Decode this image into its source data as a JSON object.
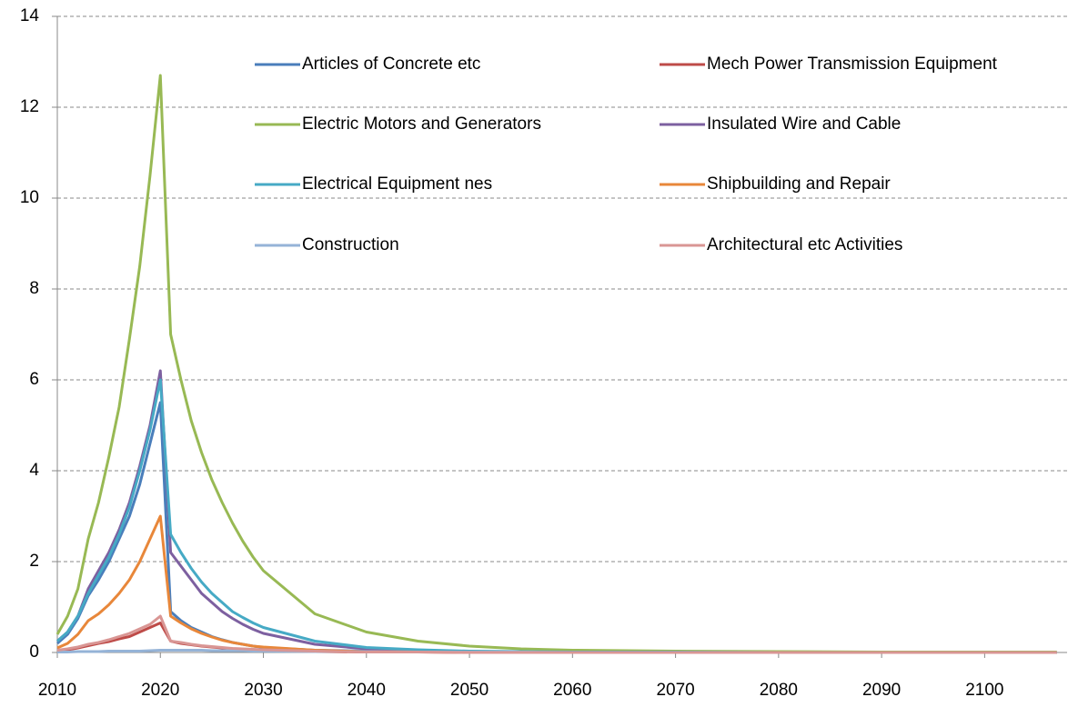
{
  "chart_data": {
    "type": "line",
    "x": [
      2010,
      2011,
      2012,
      2013,
      2014,
      2015,
      2016,
      2017,
      2018,
      2019,
      2020,
      2021,
      2022,
      2023,
      2024,
      2025,
      2026,
      2027,
      2028,
      2029,
      2030,
      2035,
      2040,
      2045,
      2050,
      2055,
      2060,
      2070,
      2080,
      2090,
      2100,
      2107
    ],
    "series": [
      {
        "name": "Articles of Concrete etc",
        "color": "#4a7ebb",
        "values": [
          0.2,
          0.4,
          0.75,
          1.25,
          1.6,
          2.0,
          2.5,
          3.0,
          3.7,
          4.6,
          5.5,
          0.9,
          0.7,
          0.55,
          0.45,
          0.35,
          0.28,
          0.22,
          0.18,
          0.14,
          0.11,
          0.05,
          0.03,
          0.02,
          0.01,
          0.01,
          0,
          0,
          0,
          0,
          0,
          0
        ]
      },
      {
        "name": "Mech Power Transmission Equipment",
        "color": "#be4b48",
        "values": [
          0.03,
          0.06,
          0.1,
          0.15,
          0.2,
          0.24,
          0.3,
          0.35,
          0.45,
          0.55,
          0.65,
          0.25,
          0.2,
          0.17,
          0.14,
          0.12,
          0.1,
          0.08,
          0.07,
          0.06,
          0.05,
          0.02,
          0.01,
          0.01,
          0,
          0,
          0,
          0,
          0,
          0,
          0,
          0
        ]
      },
      {
        "name": "Electric Motors and Generators",
        "color": "#98b954",
        "values": [
          0.4,
          0.8,
          1.4,
          2.5,
          3.3,
          4.3,
          5.4,
          6.9,
          8.5,
          10.5,
          12.7,
          7.0,
          6.0,
          5.1,
          4.4,
          3.8,
          3.3,
          2.85,
          2.45,
          2.1,
          1.8,
          0.85,
          0.45,
          0.25,
          0.14,
          0.08,
          0.05,
          0.03,
          0.02,
          0.01,
          0.01,
          0.01
        ]
      },
      {
        "name": "Insulated Wire and Cable",
        "color": "#7d60a0",
        "values": [
          0.25,
          0.45,
          0.8,
          1.4,
          1.8,
          2.2,
          2.7,
          3.3,
          4.1,
          5.0,
          6.2,
          2.2,
          1.9,
          1.6,
          1.3,
          1.1,
          0.9,
          0.75,
          0.62,
          0.51,
          0.42,
          0.18,
          0.08,
          0.04,
          0.02,
          0.01,
          0.01,
          0,
          0,
          0,
          0,
          0
        ]
      },
      {
        "name": "Electrical Equipment nes",
        "color": "#46aac5",
        "values": [
          0.25,
          0.45,
          0.8,
          1.3,
          1.7,
          2.1,
          2.6,
          3.2,
          4.0,
          4.9,
          6.0,
          2.6,
          2.2,
          1.85,
          1.55,
          1.3,
          1.1,
          0.9,
          0.77,
          0.65,
          0.55,
          0.25,
          0.11,
          0.06,
          0.03,
          0.02,
          0.01,
          0.01,
          0,
          0,
          0,
          0
        ]
      },
      {
        "name": "Shipbuilding and Repair",
        "color": "#e8873a",
        "values": [
          0.1,
          0.2,
          0.4,
          0.7,
          0.85,
          1.05,
          1.3,
          1.6,
          2.0,
          2.5,
          3.0,
          0.8,
          0.65,
          0.52,
          0.42,
          0.34,
          0.27,
          0.22,
          0.18,
          0.14,
          0.12,
          0.05,
          0.02,
          0.01,
          0.01,
          0,
          0,
          0,
          0,
          0,
          0,
          0
        ]
      },
      {
        "name": "Construction",
        "color": "#95b3d7",
        "values": [
          0.01,
          0.01,
          0.02,
          0.02,
          0.02,
          0.03,
          0.03,
          0.03,
          0.03,
          0.04,
          0.05,
          0.05,
          0.05,
          0.05,
          0.05,
          0.04,
          0.04,
          0.04,
          0.04,
          0.03,
          0.03,
          0.02,
          0.02,
          0.01,
          0.01,
          0.01,
          0,
          0,
          0,
          0,
          0,
          0
        ]
      },
      {
        "name": "Architectural etc Activities",
        "color": "#d99694",
        "values": [
          0.05,
          0.08,
          0.12,
          0.18,
          0.22,
          0.28,
          0.35,
          0.42,
          0.52,
          0.62,
          0.8,
          0.25,
          0.22,
          0.18,
          0.15,
          0.13,
          0.11,
          0.09,
          0.08,
          0.07,
          0.06,
          0.03,
          0.01,
          0.01,
          0,
          0,
          0,
          0,
          0,
          0,
          0,
          0
        ]
      }
    ],
    "xlim": [
      2010,
      2108
    ],
    "xticks": [
      2010,
      2020,
      2030,
      2040,
      2050,
      2060,
      2070,
      2080,
      2090,
      2100
    ],
    "ylim": [
      0,
      14
    ],
    "yticks": [
      0,
      2,
      4,
      6,
      8,
      10,
      12,
      14
    ],
    "grid": true
  }
}
